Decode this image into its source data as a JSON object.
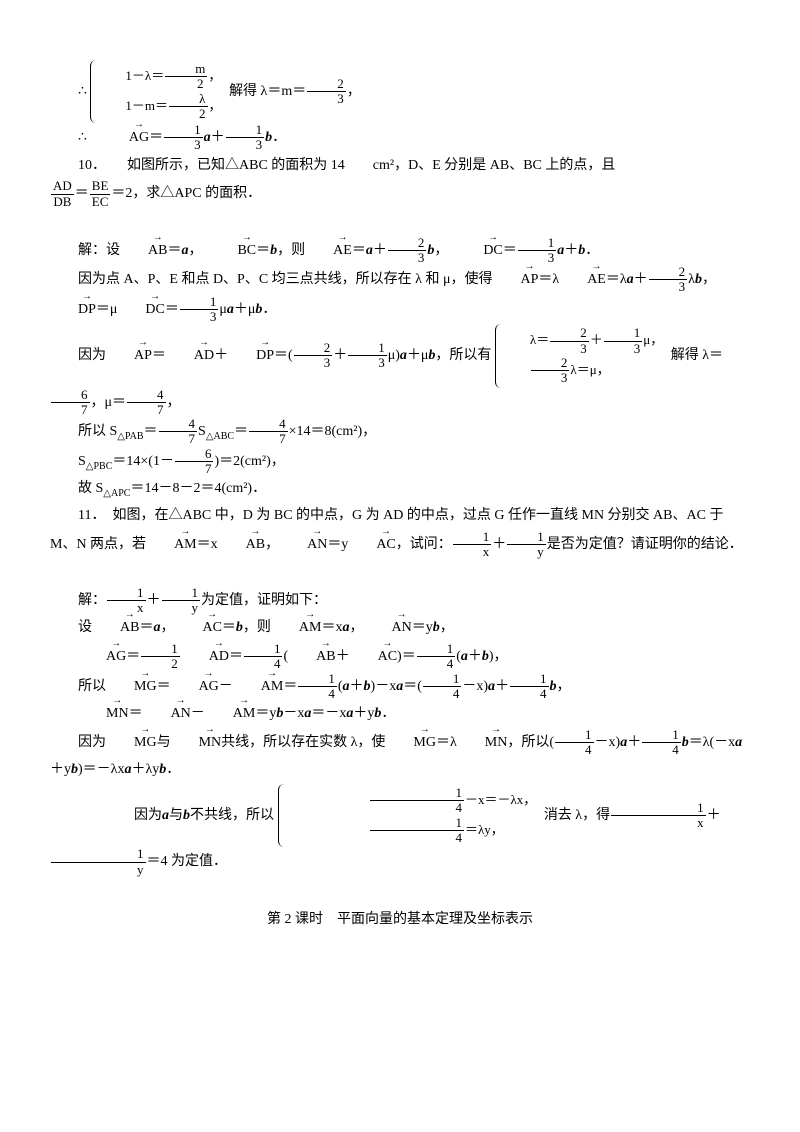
{
  "p1_prefix": "∴",
  "p1_brace_r1_a": "1－λ＝",
  "p1_brace_r1_frac_n": "m",
  "p1_brace_r1_frac_d": "2",
  "p1_brace_r1_b": "，",
  "p1_brace_r2_a": "1－m＝",
  "p1_brace_r2_frac_n": "λ",
  "p1_brace_r2_frac_d": "2",
  "p1_brace_r2_b": "，",
  "p1_after": "解得 λ＝m＝",
  "p1_frac2_n": "2",
  "p1_frac2_d": "3",
  "p1_end": "，",
  "p2_a": "∴　",
  "p2_vec": "AG",
  "p2_b": "＝",
  "p2_f1n": "1",
  "p2_f1d": "3",
  "p2_c": "a",
  "p2_d": "＋",
  "p2_f2n": "1",
  "p2_f2d": "3",
  "p2_e": "b",
  "p2_f": "．",
  "p3": "10．　　如图所示，已知△ABC 的面积为 14　　cm²，D、E 分别是 AB、BC 上的点，且",
  "p3b_f1n": "AD",
  "p3b_f1d": "DB",
  "p3b_a": "＝",
  "p3b_f2n": "BE",
  "p3b_f2d": "EC",
  "p3b_b": "＝2，求△APC 的面积．",
  "p4_a": "解：设",
  "p4_v1": "AB",
  "p4_b": "＝",
  "p4_i1": "a",
  "p4_c": "，　",
  "p4_v2": "BC",
  "p4_d": "＝",
  "p4_i2": "b",
  "p4_e": "，则",
  "p4_v3": "AE",
  "p4_f": "＝",
  "p4_i3": "a",
  "p4_g": "＋",
  "p4_fn1": "2",
  "p4_fd1": "3",
  "p4_i4": "b",
  "p4_h": "，　",
  "p4_v4": "DC",
  "p4_i": "＝",
  "p4_fn2": "1",
  "p4_fd2": "3",
  "p4_i5": "a",
  "p4_j": "＋",
  "p4_i6": "b",
  "p4_k": "．",
  "p5_a": "因为点 A、P、E 和点 D、P、C 均三点共线，所以存在 λ 和 μ，使得",
  "p5_v1": "AP",
  "p5_b": "＝λ",
  "p5_v2": "AE",
  "p5_c": "＝λ",
  "p5_i1": "a",
  "p5_d": "＋",
  "p5_fn": "2",
  "p5_fd": "3",
  "p5_e": "λ",
  "p5_i2": "b",
  "p5_f": "，　",
  "p5_v3": "DP",
  "p5_g": "＝μ",
  "p5_v4": "DC",
  "p5_h": "＝",
  "p5_fn2": "1",
  "p5_fd2": "3",
  "p5_i": "μ",
  "p5_i3": "a",
  "p5_j": "＋μ",
  "p5_i4": "b",
  "p5_k": "．",
  "p6_a": "因为",
  "p6_v1": "AP",
  "p6_b": "＝",
  "p6_v2": "AD",
  "p6_c": "＋",
  "p6_v3": "DP",
  "p6_d": "＝",
  "p6_paren_l": "(",
  "p6_fn1": "2",
  "p6_fd1": "3",
  "p6_e": "＋",
  "p6_fn2": "1",
  "p6_fd2": "3",
  "p6_f": "μ",
  "p6_paren_r": ")",
  "p6_i1": "a",
  "p6_g": "＋μ",
  "p6_i2": "b",
  "p6_h": "，所以有",
  "p6_br1_a": "λ＝",
  "p6_br1_fn1": "2",
  "p6_br1_fd1": "3",
  "p6_br1_b": "＋",
  "p6_br1_fn2": "1",
  "p6_br1_fd2": "3",
  "p6_br1_c": "μ，",
  "p6_br2_fn": "2",
  "p6_br2_fd": "3",
  "p6_br2_a": "λ＝μ，",
  "p6_i": "解得 λ＝",
  "p6_fn3": "6",
  "p6_fd3": "7",
  "p6_j": "，μ＝",
  "p6_fn4": "4",
  "p6_fd4": "7",
  "p6_k": "，",
  "p7_a": "所以 S",
  "p7_sub1": "△PAB",
  "p7_b": "＝",
  "p7_fn1": "4",
  "p7_fd1": "7",
  "p7_c": "S",
  "p7_sub2": "△ABC",
  "p7_d": "＝",
  "p7_fn2": "4",
  "p7_fd2": "7",
  "p7_e": "×14＝8(cm²)，",
  "p8_a": "S",
  "p8_sub": "△PBC",
  "p8_b": "＝14×",
  "p8_pl": "(",
  "p8_c": "1－",
  "p8_fn": "6",
  "p8_fd": "7",
  "p8_pr": ")",
  "p8_d": "＝2(cm²)，",
  "p9_a": "故 S",
  "p9_sub": "△APC",
  "p9_b": "＝14－8－2＝4(cm²)．",
  "p10_a": "11．　如图，在△ABC 中，D 为 BC 的中点，G 为 AD 的中点，过点 G 任作一直线 MN 分别交 AB、AC 于 M、N 两点，若",
  "p10_v1": "AM",
  "p10_b": "＝x",
  "p10_v2": "AB",
  "p10_c": "，",
  "p10_v3": "AN",
  "p10_d": "＝y",
  "p10_v4": "AC",
  "p10_e": "，试问：",
  "p10_fn1": "1",
  "p10_fd1": "x",
  "p10_f": "＋",
  "p10_fn2": "1",
  "p10_fd2": "y",
  "p10_g": "是否为定值？请证明你的结论．",
  "p11_a": "解：",
  "p11_fn1": "1",
  "p11_fd1": "x",
  "p11_b": "＋",
  "p11_fn2": "1",
  "p11_fd2": "y",
  "p11_c": "为定值，证明如下：",
  "p12_a": "设",
  "p12_v1": "AB",
  "p12_b": "＝",
  "p12_i1": "a",
  "p12_c": "，",
  "p12_v2": "AC",
  "p12_d": "＝",
  "p12_i2": "b",
  "p12_e": "，则",
  "p12_v3": "AM",
  "p12_f": "＝x",
  "p12_i3": "a",
  "p12_g": "，",
  "p12_v4": "AN",
  "p12_h": "＝y",
  "p12_i4": "b",
  "p12_i": "，",
  "p13_v1": "AG",
  "p13_a": "＝",
  "p13_fn1": "1",
  "p13_fd1": "2",
  "p13_v2": "AD",
  "p13_b": "＝",
  "p13_fn2": "1",
  "p13_fd2": "4",
  "p13_c": "(",
  "p13_v3": "AB",
  "p13_d": "＋",
  "p13_v4": "AC",
  "p13_e": ")＝",
  "p13_fn3": "1",
  "p13_fd3": "4",
  "p13_f": "(",
  "p13_i1": "a",
  "p13_g": "＋",
  "p13_i2": "b",
  "p13_h": ")，",
  "p14_a": "所以",
  "p14_v1": "MG",
  "p14_b": "＝",
  "p14_v2": "AG",
  "p14_c": "－",
  "p14_v3": "AM",
  "p14_d": "＝",
  "p14_fn1": "1",
  "p14_fd1": "4",
  "p14_e": "(",
  "p14_i1": "a",
  "p14_f": "＋",
  "p14_i2": "b",
  "p14_g": ")－x",
  "p14_i3": "a",
  "p14_h": "＝",
  "p14_pl": "(",
  "p14_fn2": "1",
  "p14_fd2": "4",
  "p14_i": "－x",
  "p14_pr": ")",
  "p14_i4": "a",
  "p14_j": "＋",
  "p14_fn3": "1",
  "p14_fd3": "4",
  "p14_i5": "b",
  "p14_k": "，",
  "p15_v1": "MN",
  "p15_a": "＝",
  "p15_v2": "AN",
  "p15_b": "－",
  "p15_v3": "AM",
  "p15_c": "＝y",
  "p15_i1": "b",
  "p15_d": "－x",
  "p15_i2": "a",
  "p15_e": "＝－x",
  "p15_i3": "a",
  "p15_f": "＋y",
  "p15_i4": "b",
  "p15_g": "．",
  "p16_a": "因为",
  "p16_v1": "MG",
  "p16_b": "与",
  "p16_v2": "MN",
  "p16_c": "共线，所以存在实数 λ，使",
  "p16_v3": "MG",
  "p16_d": "＝λ",
  "p16_v4": "MN",
  "p16_e": "，所以",
  "p16_pl": "(",
  "p16_fn1": "1",
  "p16_fd1": "4",
  "p16_f": "－x",
  "p16_pr": ")",
  "p16_i1": "a",
  "p16_g": "＋",
  "p16_fn2": "1",
  "p16_fd2": "4",
  "p16_i2": "b",
  "p16_h": "＝λ(－x",
  "p16_i3": "a",
  "p16_i": "＋y",
  "p16_i4": "b",
  "p16_j": ")＝－λx",
  "p16_i5": "a",
  "p16_k": "＋λy",
  "p16_i6": "b",
  "p16_l": "．",
  "p17_a": "因为",
  "p17_i1": "a",
  "p17_b": "与",
  "p17_i2": "b",
  "p17_c": "不共线，所以",
  "p17_br1_fn": "1",
  "p17_br1_fd": "4",
  "p17_br1_a": "－x＝－λx，",
  "p17_br2_fn": "1",
  "p17_br2_fd": "4",
  "p17_br2_a": "＝λy，",
  "p17_d": "消去 λ，得",
  "p17_fn1": "1",
  "p17_fd1": "x",
  "p17_e": "＋",
  "p17_fn2": "1",
  "p17_fd2": "y",
  "p17_f": "＝4 为定值．",
  "section": "第 2 课时　平面向量的基本定理及坐标表示"
}
